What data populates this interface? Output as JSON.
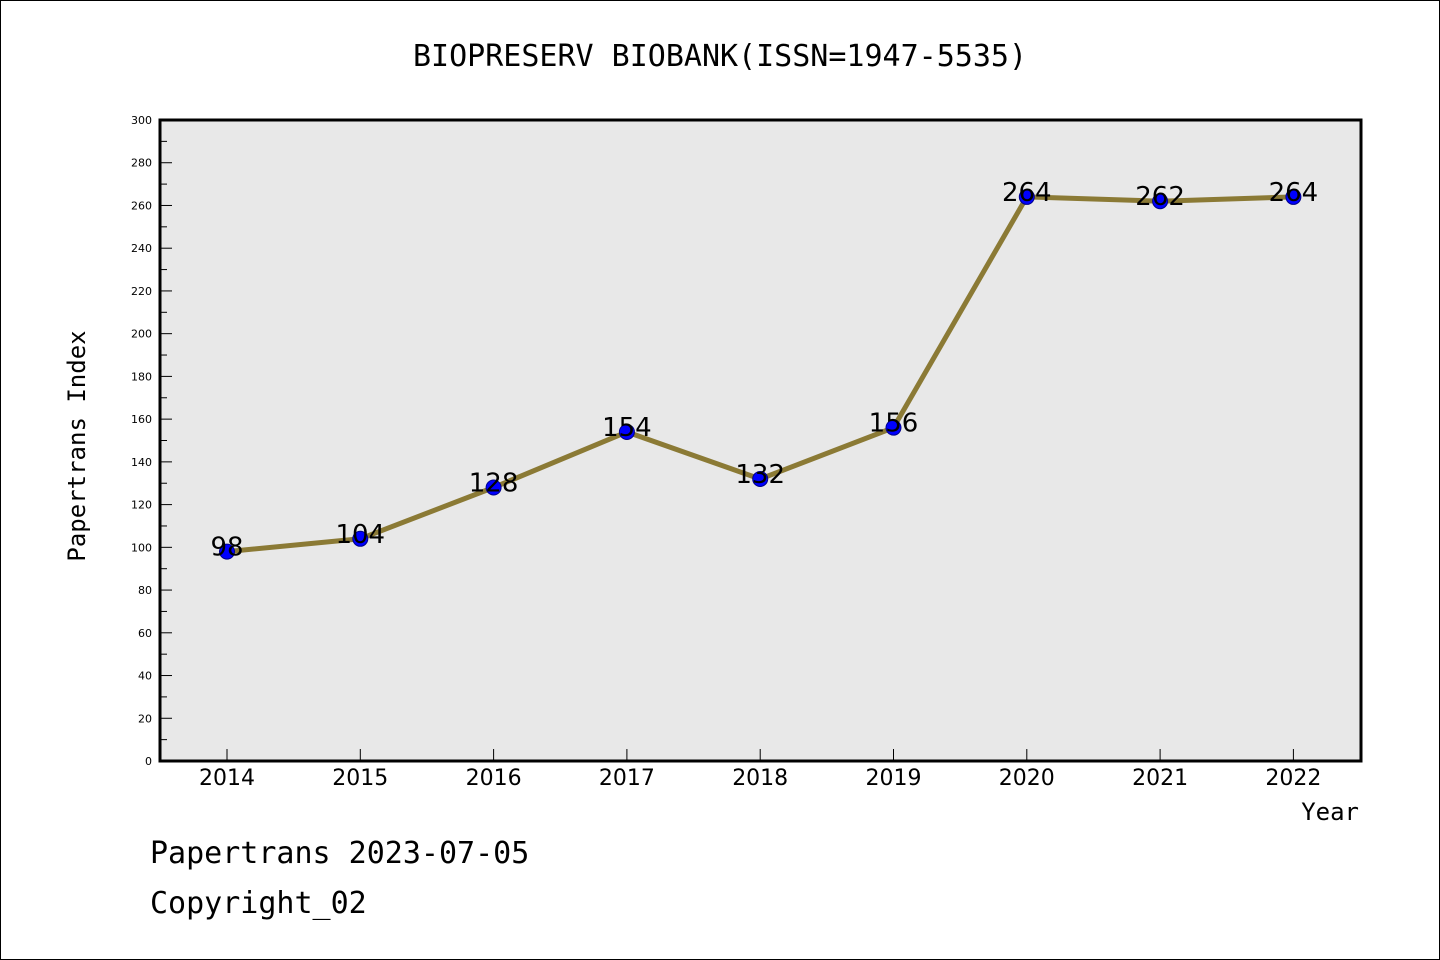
{
  "chart_data": {
    "type": "line",
    "title": "BIOPRESERV BIOBANK(ISSN=1947-5535)",
    "xlabel": "Year",
    "ylabel": "Papertrans Index",
    "categories": [
      "2014",
      "2015",
      "2016",
      "2017",
      "2018",
      "2019",
      "2020",
      "2021",
      "2022"
    ],
    "series": [
      {
        "values": [
          98,
          104,
          128,
          154,
          132,
          156,
          264,
          262,
          264
        ]
      }
    ],
    "data_labels": [
      "98",
      "104",
      "128",
      "154",
      "132",
      "156",
      "264",
      "262",
      "264"
    ],
    "ylim": [
      0,
      300
    ],
    "yticks": [
      "0",
      "20",
      "40",
      "60",
      "80",
      "100",
      "120",
      "140",
      "160",
      "180",
      "200",
      "220",
      "240",
      "260",
      "280",
      "300"
    ],
    "grid": false,
    "colors": {
      "line": "#8b7a35",
      "marker": "#0000ff",
      "plot_background": "#e8e8e8"
    }
  },
  "footer": {
    "line1": "Papertrans 2023-07-05",
    "line2": "Copyright_02"
  }
}
